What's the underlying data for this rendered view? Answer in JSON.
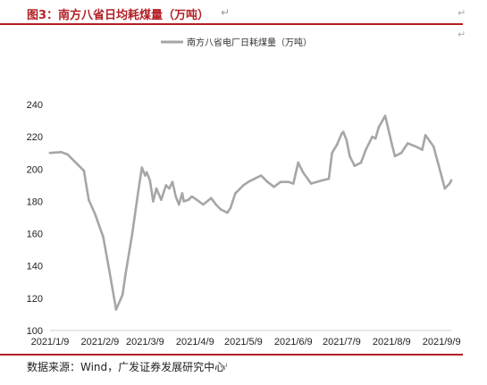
{
  "header": {
    "title": "图3：南方八省日均耗煤量（万吨）"
  },
  "footer": {
    "source": "数据来源：Wind，广发证券发展研究中心"
  },
  "paragraph_mark": "↵",
  "chart_data": {
    "type": "line",
    "ylim": [
      100,
      240
    ],
    "yticks": [
      100,
      120,
      140,
      160,
      180,
      200,
      220,
      240
    ],
    "xticks": [
      "2021/1/9",
      "2021/2/9",
      "2021/3/9",
      "2021/4/9",
      "2021/5/9",
      "2021/6/9",
      "2021/7/9",
      "2021/8/9",
      "2021/9/9"
    ],
    "grid": false,
    "legend_position": "top-center",
    "series": [
      {
        "name": "南方八省电厂日耗煤量（万吨）",
        "color": "#a6a6a6",
        "points": [
          [
            "2021-01-09",
            210
          ],
          [
            "2021-01-16",
            210.5
          ],
          [
            "2021-01-20",
            209
          ],
          [
            "2021-01-26",
            203
          ],
          [
            "2021-01-30",
            199
          ],
          [
            "2021-02-02",
            181
          ],
          [
            "2021-02-06",
            172
          ],
          [
            "2021-02-11",
            158
          ],
          [
            "2021-02-15",
            136
          ],
          [
            "2021-02-19",
            113
          ],
          [
            "2021-02-23",
            122
          ],
          [
            "2021-02-25",
            136
          ],
          [
            "2021-03-01",
            160
          ],
          [
            "2021-03-05",
            188
          ],
          [
            "2021-03-07",
            201
          ],
          [
            "2021-03-09",
            196
          ],
          [
            "2021-03-10",
            198
          ],
          [
            "2021-03-12",
            193
          ],
          [
            "2021-03-14",
            180
          ],
          [
            "2021-03-16",
            188
          ],
          [
            "2021-03-19",
            181
          ],
          [
            "2021-03-22",
            190
          ],
          [
            "2021-03-24",
            188
          ],
          [
            "2021-03-26",
            192
          ],
          [
            "2021-03-28",
            183
          ],
          [
            "2021-03-30",
            178
          ],
          [
            "2021-04-01",
            185
          ],
          [
            "2021-04-02",
            180
          ],
          [
            "2021-04-05",
            181
          ],
          [
            "2021-04-07",
            183
          ],
          [
            "2021-04-10",
            181
          ],
          [
            "2021-04-14",
            178
          ],
          [
            "2021-04-19",
            182
          ],
          [
            "2021-04-22",
            178
          ],
          [
            "2021-04-25",
            175
          ],
          [
            "2021-04-29",
            173
          ],
          [
            "2021-05-01",
            176
          ],
          [
            "2021-05-04",
            185
          ],
          [
            "2021-05-09",
            190
          ],
          [
            "2021-05-12",
            192
          ],
          [
            "2021-05-16",
            194
          ],
          [
            "2021-05-20",
            196
          ],
          [
            "2021-05-24",
            192
          ],
          [
            "2021-05-28",
            189
          ],
          [
            "2021-06-01",
            192
          ],
          [
            "2021-06-06",
            192
          ],
          [
            "2021-06-09",
            191
          ],
          [
            "2021-06-12",
            204
          ],
          [
            "2021-06-15",
            198
          ],
          [
            "2021-06-20",
            191
          ],
          [
            "2021-06-27",
            193
          ],
          [
            "2021-07-01",
            194
          ],
          [
            "2021-07-03",
            210
          ],
          [
            "2021-07-06",
            215
          ],
          [
            "2021-07-09",
            222
          ],
          [
            "2021-07-10",
            223
          ],
          [
            "2021-07-12",
            218
          ],
          [
            "2021-07-14",
            208
          ],
          [
            "2021-07-17",
            202
          ],
          [
            "2021-07-21",
            204
          ],
          [
            "2021-07-24",
            212
          ],
          [
            "2021-07-28",
            220
          ],
          [
            "2021-07-30",
            219
          ],
          [
            "2021-08-01",
            226
          ],
          [
            "2021-08-05",
            233
          ],
          [
            "2021-08-09",
            216
          ],
          [
            "2021-08-11",
            208
          ],
          [
            "2021-08-15",
            210
          ],
          [
            "2021-08-19",
            216
          ],
          [
            "2021-08-24",
            214
          ],
          [
            "2021-08-28",
            212
          ],
          [
            "2021-08-30",
            221
          ],
          [
            "2021-09-04",
            214
          ],
          [
            "2021-09-07",
            203
          ],
          [
            "2021-09-11",
            188
          ],
          [
            "2021-09-14",
            191
          ],
          [
            "2021-09-15",
            193
          ]
        ]
      }
    ]
  }
}
